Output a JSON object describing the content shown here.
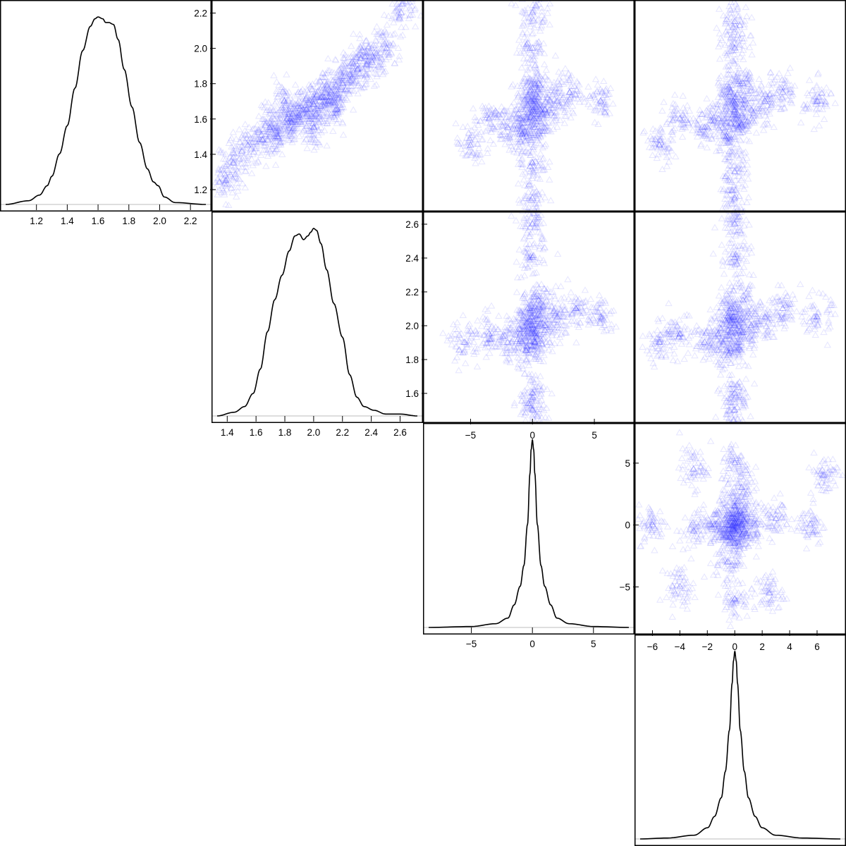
{
  "figure": {
    "type": "pairs-plot",
    "n_variables": 4,
    "point_color": "#2a2aff",
    "point_marker": "open-triangle",
    "density_line_color": "#000000",
    "baseline_color": "#bdbdbd"
  },
  "chart_data": [
    {
      "panel": "density-1",
      "type": "line",
      "variable": 1,
      "xlim": [
        1.0,
        2.3
      ],
      "xticks": [
        "1.2",
        "1.4",
        "1.6",
        "1.8",
        "2.0",
        "2.2"
      ],
      "x": [
        1.0,
        1.15,
        1.22,
        1.27,
        1.3,
        1.35,
        1.4,
        1.45,
        1.5,
        1.55,
        1.58,
        1.6,
        1.63,
        1.65,
        1.67,
        1.7,
        1.73,
        1.77,
        1.82,
        1.87,
        1.92,
        1.96,
        1.99,
        2.03,
        2.1,
        2.3
      ],
      "y": [
        0.0,
        0.02,
        0.05,
        0.1,
        0.15,
        0.27,
        0.42,
        0.62,
        0.82,
        0.95,
        0.99,
        1.0,
        0.99,
        0.97,
        0.97,
        0.96,
        0.88,
        0.72,
        0.52,
        0.33,
        0.19,
        0.12,
        0.1,
        0.04,
        0.01,
        0.0
      ],
      "ylim": [
        0,
        1.06
      ]
    },
    {
      "panel": "density-2",
      "type": "line",
      "variable": 2,
      "xlim": [
        1.33,
        2.72
      ],
      "xticks": [
        "1.4",
        "1.6",
        "1.8",
        "2.0",
        "2.2",
        "2.4",
        "2.6"
      ],
      "x": [
        1.33,
        1.45,
        1.52,
        1.58,
        1.63,
        1.68,
        1.73,
        1.78,
        1.83,
        1.87,
        1.9,
        1.93,
        1.96,
        1.98,
        2.0,
        2.02,
        2.05,
        2.09,
        2.14,
        2.2,
        2.25,
        2.3,
        2.35,
        2.42,
        2.5,
        2.6,
        2.72
      ],
      "y": [
        0.0,
        0.02,
        0.05,
        0.12,
        0.25,
        0.45,
        0.62,
        0.75,
        0.88,
        0.96,
        0.97,
        0.94,
        0.96,
        0.98,
        1.0,
        0.99,
        0.92,
        0.78,
        0.6,
        0.42,
        0.22,
        0.1,
        0.05,
        0.03,
        0.01,
        0.01,
        0.0
      ],
      "ylim": [
        0,
        1.06
      ]
    },
    {
      "panel": "density-3",
      "type": "line",
      "variable": 3,
      "xlim": [
        -8.5,
        7.9
      ],
      "xticks": [
        "−5",
        "0",
        "5"
      ],
      "x": [
        -8.5,
        -5.0,
        -3.0,
        -2.0,
        -1.5,
        -1.0,
        -0.7,
        -0.4,
        -0.2,
        -0.1,
        0.0,
        0.1,
        0.2,
        0.4,
        0.7,
        1.0,
        1.5,
        2.0,
        3.0,
        5.0,
        7.9
      ],
      "y": [
        0.0,
        0.005,
        0.02,
        0.05,
        0.12,
        0.22,
        0.33,
        0.55,
        0.82,
        0.95,
        1.0,
        0.95,
        0.82,
        0.55,
        0.33,
        0.22,
        0.12,
        0.05,
        0.02,
        0.005,
        0.0
      ],
      "ylim": [
        0,
        1.06
      ]
    },
    {
      "panel": "density-4",
      "type": "line",
      "variable": 4,
      "xlim": [
        -7.0,
        7.8
      ],
      "x": [
        -7.0,
        -5.0,
        -3.0,
        -2.0,
        -1.5,
        -1.0,
        -0.7,
        -0.4,
        -0.2,
        -0.1,
        0.0,
        0.1,
        0.2,
        0.4,
        0.7,
        1.0,
        1.5,
        2.0,
        3.0,
        5.0,
        7.8
      ],
      "y": [
        0.0,
        0.005,
        0.02,
        0.06,
        0.12,
        0.22,
        0.36,
        0.58,
        0.83,
        0.95,
        1.0,
        0.95,
        0.83,
        0.58,
        0.36,
        0.22,
        0.12,
        0.06,
        0.02,
        0.005,
        0.0
      ],
      "ylim": [
        0,
        1.06
      ]
    },
    {
      "panel": "scatter-1-2",
      "type": "scatter",
      "x_variable": 2,
      "y_variable": 1,
      "xlim": [
        1.33,
        2.72
      ],
      "ylim": [
        1.1,
        2.25
      ],
      "yticks": [
        "1.2",
        "1.4",
        "1.6",
        "1.8",
        "2.0",
        "2.2"
      ],
      "points": [
        [
          1.55,
          1.45
        ],
        [
          1.7,
          1.55
        ],
        [
          1.82,
          1.6
        ],
        [
          1.9,
          1.62
        ],
        [
          2.0,
          1.68
        ],
        [
          2.05,
          1.72
        ],
        [
          2.12,
          1.75
        ],
        [
          2.2,
          1.8
        ],
        [
          2.3,
          1.88
        ],
        [
          2.4,
          1.92
        ],
        [
          1.75,
          1.5
        ],
        [
          1.85,
          1.58
        ],
        [
          1.95,
          1.65
        ],
        [
          2.1,
          1.7
        ],
        [
          2.25,
          1.85
        ],
        [
          1.65,
          1.48
        ],
        [
          2.35,
          1.95
        ],
        [
          2.5,
          2.0
        ],
        [
          1.45,
          1.35
        ],
        [
          2.6,
          2.2
        ],
        [
          1.4,
          1.25
        ],
        [
          2.15,
          1.65
        ],
        [
          1.8,
          1.7
        ],
        [
          2.0,
          1.55
        ]
      ]
    },
    {
      "panel": "scatter-1-3",
      "type": "scatter",
      "x_variable": 3,
      "y_variable": 1,
      "xlim": [
        -8.5,
        7.9
      ],
      "ylim": [
        1.1,
        2.25
      ],
      "points": [
        [
          0.0,
          1.65
        ],
        [
          0.1,
          1.6
        ],
        [
          -0.1,
          1.7
        ],
        [
          0.2,
          1.55
        ],
        [
          -0.2,
          1.75
        ],
        [
          0.5,
          1.8
        ],
        [
          -0.5,
          1.5
        ],
        [
          1.0,
          1.65
        ],
        [
          -1.0,
          1.6
        ],
        [
          2.0,
          1.7
        ],
        [
          -2.0,
          1.55
        ],
        [
          3.0,
          1.75
        ],
        [
          -3.5,
          1.6
        ],
        [
          5.5,
          1.7
        ],
        [
          -5.0,
          1.45
        ],
        [
          0.0,
          1.35
        ],
        [
          0.0,
          2.0
        ],
        [
          0.0,
          1.15
        ],
        [
          0.0,
          2.2
        ]
      ]
    },
    {
      "panel": "scatter-1-4",
      "type": "scatter",
      "x_variable": 4,
      "y_variable": 1,
      "xlim": [
        -7.0,
        7.8
      ],
      "ylim": [
        1.1,
        2.25
      ],
      "points": [
        [
          0.0,
          1.65
        ],
        [
          0.1,
          1.6
        ],
        [
          -0.1,
          1.7
        ],
        [
          0.3,
          1.55
        ],
        [
          -0.3,
          1.75
        ],
        [
          0.6,
          1.8
        ],
        [
          -0.6,
          1.5
        ],
        [
          1.2,
          1.65
        ],
        [
          -1.2,
          1.6
        ],
        [
          2.2,
          1.7
        ],
        [
          -2.2,
          1.55
        ],
        [
          3.5,
          1.75
        ],
        [
          -4.0,
          1.6
        ],
        [
          6.0,
          1.7
        ],
        [
          -5.5,
          1.45
        ],
        [
          0.0,
          1.3
        ],
        [
          0.0,
          2.0
        ],
        [
          0.0,
          1.15
        ],
        [
          0.0,
          2.15
        ]
      ]
    },
    {
      "panel": "scatter-2-3",
      "type": "scatter",
      "x_variable": 3,
      "y_variable": 2,
      "xlim": [
        -8.5,
        7.9
      ],
      "ylim": [
        1.45,
        2.65
      ],
      "xticks": [
        "−5",
        "0",
        "5"
      ],
      "yticks": [
        "1.6",
        "1.8",
        "2.0",
        "2.2",
        "2.4",
        "2.6"
      ],
      "points": [
        [
          0.0,
          2.0
        ],
        [
          0.1,
          1.95
        ],
        [
          -0.1,
          2.05
        ],
        [
          0.2,
          1.9
        ],
        [
          -0.2,
          2.1
        ],
        [
          0.5,
          2.15
        ],
        [
          -0.5,
          1.85
        ],
        [
          1.0,
          2.0
        ],
        [
          -1.0,
          1.95
        ],
        [
          2.0,
          2.05
        ],
        [
          -2.0,
          1.9
        ],
        [
          3.5,
          2.1
        ],
        [
          -3.5,
          1.95
        ],
        [
          5.5,
          2.05
        ],
        [
          -5.5,
          1.9
        ],
        [
          0.0,
          1.6
        ],
        [
          0.0,
          2.4
        ],
        [
          0.0,
          1.5
        ],
        [
          0.0,
          2.6
        ]
      ]
    },
    {
      "panel": "scatter-2-4",
      "type": "scatter",
      "x_variable": 4,
      "y_variable": 2,
      "xlim": [
        -7.0,
        7.8
      ],
      "ylim": [
        1.45,
        2.65
      ],
      "points": [
        [
          0.0,
          2.0
        ],
        [
          0.1,
          1.95
        ],
        [
          -0.1,
          2.05
        ],
        [
          0.3,
          1.9
        ],
        [
          -0.3,
          2.1
        ],
        [
          0.6,
          2.15
        ],
        [
          -0.6,
          1.85
        ],
        [
          1.2,
          2.0
        ],
        [
          -1.2,
          1.95
        ],
        [
          2.2,
          2.05
        ],
        [
          -2.2,
          1.9
        ],
        [
          3.5,
          2.1
        ],
        [
          -4.0,
          1.95
        ],
        [
          6.0,
          2.05
        ],
        [
          -5.5,
          1.9
        ],
        [
          0.0,
          1.6
        ],
        [
          0.0,
          2.4
        ],
        [
          0.0,
          1.5
        ],
        [
          0.0,
          2.6
        ]
      ]
    },
    {
      "panel": "scatter-3-4",
      "type": "scatter",
      "x_variable": 4,
      "y_variable": 3,
      "xlim": [
        -7.0,
        7.8
      ],
      "ylim": [
        -8.5,
        7.9
      ],
      "xticks": [
        "−6",
        "−4",
        "−2",
        "0",
        "2",
        "4",
        "6"
      ],
      "yticks": [
        "−5",
        "0",
        "5"
      ],
      "points": [
        [
          0.0,
          0.0
        ],
        [
          0.2,
          0.1
        ],
        [
          -0.2,
          -0.1
        ],
        [
          0.5,
          0.0
        ],
        [
          -0.5,
          0.0
        ],
        [
          0.0,
          0.5
        ],
        [
          0.0,
          -0.5
        ],
        [
          1.5,
          0.0
        ],
        [
          -1.5,
          0.0
        ],
        [
          0.0,
          1.5
        ],
        [
          0.0,
          -1.5
        ],
        [
          3.0,
          0.5
        ],
        [
          -3.0,
          -0.5
        ],
        [
          0.5,
          3.0
        ],
        [
          -0.5,
          -3.0
        ],
        [
          5.5,
          0.0
        ],
        [
          -6.0,
          0.0
        ],
        [
          0.0,
          5.0
        ],
        [
          0.0,
          -6.0
        ],
        [
          6.5,
          4.0
        ],
        [
          -4.0,
          -5.0
        ],
        [
          2.5,
          -5.5
        ],
        [
          -3.0,
          4.5
        ]
      ]
    }
  ]
}
